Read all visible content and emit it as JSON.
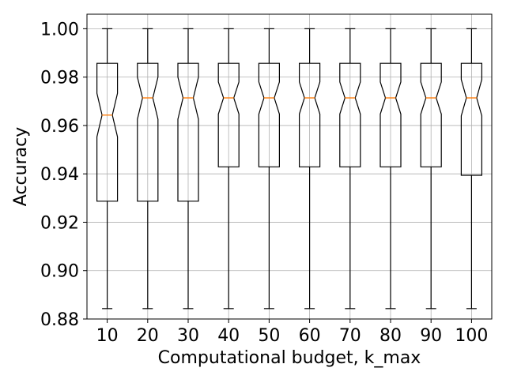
{
  "chart_data": {
    "type": "boxplot",
    "title": "",
    "xlabel": "Computational budget, k_max",
    "ylabel": "Accuracy",
    "ylim": [
      0.88,
      1.006
    ],
    "yticks": [
      0.88,
      0.9,
      0.92,
      0.94,
      0.96,
      0.98,
      1.0
    ],
    "ytick_labels": [
      "0.88",
      "0.90",
      "0.92",
      "0.94",
      "0.96",
      "0.98",
      "1.00"
    ],
    "grid": true,
    "notched": true,
    "categories": [
      "10",
      "20",
      "30",
      "40",
      "50",
      "60",
      "70",
      "80",
      "90",
      "100"
    ],
    "boxes": [
      {
        "whisker_low": 0.8843,
        "q1": 0.9287,
        "median": 0.9643,
        "q3": 0.9857,
        "whisker_high": 1.0,
        "notch_low": 0.9553,
        "notch_high": 0.9733
      },
      {
        "whisker_low": 0.8843,
        "q1": 0.9287,
        "median": 0.9714,
        "q3": 0.9857,
        "whisker_high": 1.0,
        "notch_low": 0.9626,
        "notch_high": 0.98
      },
      {
        "whisker_low": 0.8843,
        "q1": 0.9287,
        "median": 0.9714,
        "q3": 0.9857,
        "whisker_high": 1.0,
        "notch_low": 0.9626,
        "notch_high": 0.98
      },
      {
        "whisker_low": 0.8843,
        "q1": 0.9429,
        "median": 0.9714,
        "q3": 0.9857,
        "whisker_high": 1.0,
        "notch_low": 0.9647,
        "notch_high": 0.978
      },
      {
        "whisker_low": 0.8843,
        "q1": 0.9429,
        "median": 0.9714,
        "q3": 0.9857,
        "whisker_high": 1.0,
        "notch_low": 0.9647,
        "notch_high": 0.978
      },
      {
        "whisker_low": 0.8843,
        "q1": 0.9429,
        "median": 0.9714,
        "q3": 0.9857,
        "whisker_high": 1.0,
        "notch_low": 0.9647,
        "notch_high": 0.978
      },
      {
        "whisker_low": 0.8843,
        "q1": 0.9429,
        "median": 0.9714,
        "q3": 0.9857,
        "whisker_high": 1.0,
        "notch_low": 0.9647,
        "notch_high": 0.978
      },
      {
        "whisker_low": 0.8843,
        "q1": 0.9429,
        "median": 0.9714,
        "q3": 0.9857,
        "whisker_high": 1.0,
        "notch_low": 0.9647,
        "notch_high": 0.978
      },
      {
        "whisker_low": 0.8843,
        "q1": 0.9429,
        "median": 0.9714,
        "q3": 0.9857,
        "whisker_high": 1.0,
        "notch_low": 0.9647,
        "notch_high": 0.978
      },
      {
        "whisker_low": 0.8843,
        "q1": 0.9394,
        "median": 0.9714,
        "q3": 0.9857,
        "whisker_high": 1.0,
        "notch_low": 0.964,
        "notch_high": 0.979
      }
    ],
    "colors": {
      "box": "#000000",
      "median": "#ff7f0e",
      "grid": "#b0b0b0",
      "background": "#ffffff"
    }
  }
}
